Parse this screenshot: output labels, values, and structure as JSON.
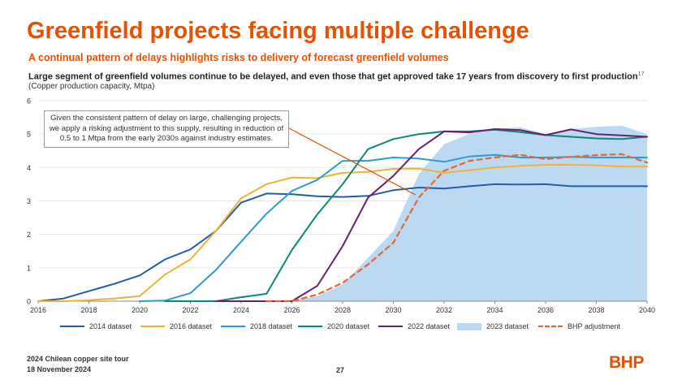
{
  "header": {
    "title": "Greenfield projects facing multiple challenge",
    "subtitle": "A continual pattern of delays highlights risks to delivery of forecast greenfield volumes",
    "heading": "Large segment of greenfield volumes continue to be delayed, and even those that get approved take 17 years from discovery to first production",
    "heading_sup": "17",
    "unit": "(Copper production capacity, Mtpa)"
  },
  "annotation": "Given the consistent pattern of delay on large, challenging projects, we apply a risking adjustment to this supply, resulting in reduction of 0.5 to 1 Mtpa from the early 2030s against industry estimates.",
  "footer": {
    "event": "2024 Chilean copper site tour",
    "date": "18 November 2024",
    "page": "27",
    "logo": "BHP"
  },
  "colors": {
    "accent": "#e35205",
    "s2014": "#1f5fa8",
    "s2016": "#f2b134",
    "s2018": "#2e9bd6",
    "s2020": "#0a8a74",
    "s2022": "#6b1f6e",
    "s2023": "#bcd9f3",
    "bhp": "#e8662c"
  },
  "chart_data": {
    "type": "line",
    "xlim": [
      2016,
      2040
    ],
    "ylim": [
      0,
      6
    ],
    "x_ticks": [
      2016,
      2018,
      2020,
      2022,
      2024,
      2026,
      2028,
      2030,
      2032,
      2034,
      2036,
      2038,
      2040
    ],
    "y_ticks": [
      0,
      1,
      2,
      3,
      4,
      5,
      6
    ],
    "x": [
      2016,
      2017,
      2018,
      2019,
      2020,
      2021,
      2022,
      2023,
      2024,
      2025,
      2026,
      2027,
      2028,
      2029,
      2030,
      2031,
      2032,
      2033,
      2034,
      2035,
      2036,
      2037,
      2038,
      2039,
      2040
    ],
    "series": [
      {
        "name": "2014 dataset",
        "color_key": "s2014",
        "style": "line",
        "values": [
          0,
          0.08,
          0.3,
          0.52,
          0.77,
          1.25,
          1.55,
          2.1,
          2.95,
          3.22,
          3.2,
          3.14,
          3.12,
          3.15,
          3.32,
          3.4,
          3.37,
          3.44,
          3.5,
          3.49,
          3.5,
          3.44,
          3.44,
          3.44,
          3.44
        ]
      },
      {
        "name": "2016 dataset",
        "color_key": "s2016",
        "style": "line",
        "values": [
          0,
          0,
          0.03,
          0.08,
          0.15,
          0.8,
          1.25,
          2.1,
          3.08,
          3.5,
          3.7,
          3.68,
          3.84,
          3.87,
          3.96,
          3.97,
          3.84,
          3.92,
          4.0,
          4.05,
          4.08,
          4.08,
          4.07,
          4.03,
          4.03
        ]
      },
      {
        "name": "2018 dataset",
        "color_key": "s2018",
        "style": "line",
        "values": [
          null,
          null,
          null,
          null,
          0,
          0.02,
          0.24,
          0.93,
          1.78,
          2.62,
          3.3,
          3.63,
          4.2,
          4.2,
          4.3,
          4.27,
          4.17,
          4.33,
          4.38,
          4.3,
          4.3,
          4.32,
          4.3,
          4.3,
          4.3
        ]
      },
      {
        "name": "2020 dataset",
        "color_key": "s2020",
        "style": "line",
        "values": [
          null,
          null,
          null,
          null,
          null,
          0,
          0,
          0,
          0.12,
          0.22,
          1.53,
          2.6,
          3.5,
          4.55,
          4.85,
          5.0,
          5.08,
          5.08,
          5.13,
          5.06,
          4.97,
          4.92,
          4.87,
          4.85,
          4.92
        ]
      },
      {
        "name": "2022 dataset",
        "color_key": "s2022",
        "style": "line",
        "values": [
          null,
          null,
          null,
          null,
          null,
          null,
          null,
          0,
          0,
          0,
          0,
          0.46,
          1.65,
          3.1,
          3.75,
          4.55,
          5.08,
          5.05,
          5.15,
          5.12,
          4.97,
          5.14,
          5.0,
          4.96,
          4.92
        ]
      },
      {
        "name": "2023 dataset",
        "color_key": "s2023",
        "style": "area",
        "values": [
          null,
          null,
          null,
          null,
          null,
          null,
          null,
          null,
          null,
          0,
          0.02,
          0.15,
          0.5,
          1.3,
          2.1,
          3.8,
          4.7,
          5.0,
          5.15,
          5.2,
          5.0,
          5.15,
          5.22,
          5.25,
          5.0
        ]
      },
      {
        "name": "BHP adjustment",
        "color_key": "bhp",
        "style": "dashed",
        "values": [
          null,
          null,
          null,
          null,
          null,
          null,
          null,
          null,
          null,
          0,
          0,
          0.2,
          0.55,
          1.1,
          1.75,
          3.1,
          3.9,
          4.2,
          4.3,
          4.38,
          4.25,
          4.32,
          4.37,
          4.4,
          4.15
        ]
      }
    ]
  }
}
